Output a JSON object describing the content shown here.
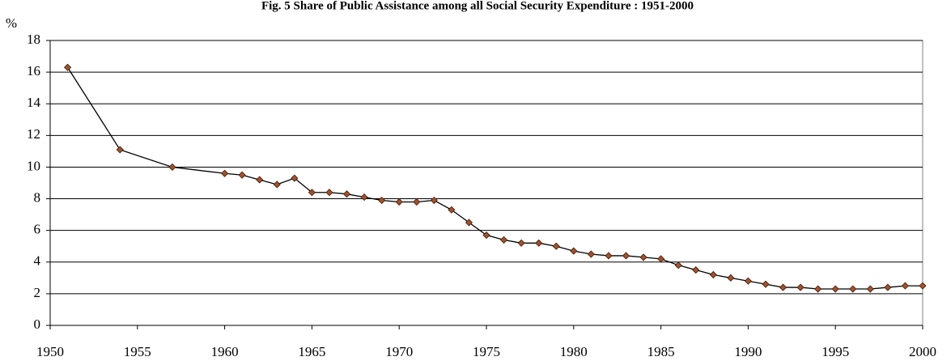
{
  "chart_data": {
    "type": "line",
    "title": "Fig. 5   Share of Public Assistance among all Social Security Expenditure : 1951-2000",
    "y_label": "%",
    "x": [
      1951,
      1954,
      1957,
      1960,
      1961,
      1962,
      1963,
      1964,
      1965,
      1966,
      1967,
      1968,
      1969,
      1970,
      1971,
      1972,
      1973,
      1974,
      1975,
      1976,
      1977,
      1978,
      1979,
      1980,
      1981,
      1982,
      1983,
      1984,
      1985,
      1986,
      1987,
      1988,
      1989,
      1990,
      1991,
      1992,
      1993,
      1994,
      1995,
      1996,
      1997,
      1998,
      1999,
      2000
    ],
    "values": [
      16.3,
      11.1,
      10.0,
      9.6,
      9.5,
      9.2,
      8.9,
      9.3,
      8.4,
      8.4,
      8.3,
      8.1,
      7.9,
      7.8,
      7.8,
      7.9,
      7.3,
      6.5,
      5.7,
      5.4,
      5.2,
      5.2,
      5.0,
      4.7,
      4.5,
      4.4,
      4.4,
      4.3,
      4.2,
      3.8,
      3.5,
      3.2,
      3.0,
      2.8,
      2.6,
      2.4,
      2.4,
      2.3,
      2.3,
      2.3,
      2.3,
      2.4,
      2.5,
      2.5
    ],
    "color": "#000000",
    "marker_color": "#a0522d",
    "xlim": [
      1950,
      2000
    ],
    "xticks": [
      1950,
      1955,
      1960,
      1965,
      1970,
      1975,
      1980,
      1985,
      1990,
      1995,
      2000
    ],
    "ylim": [
      0,
      18
    ],
    "yticks": [
      0,
      2,
      4,
      6,
      8,
      10,
      12,
      14,
      16,
      18
    ],
    "grid": true
  }
}
